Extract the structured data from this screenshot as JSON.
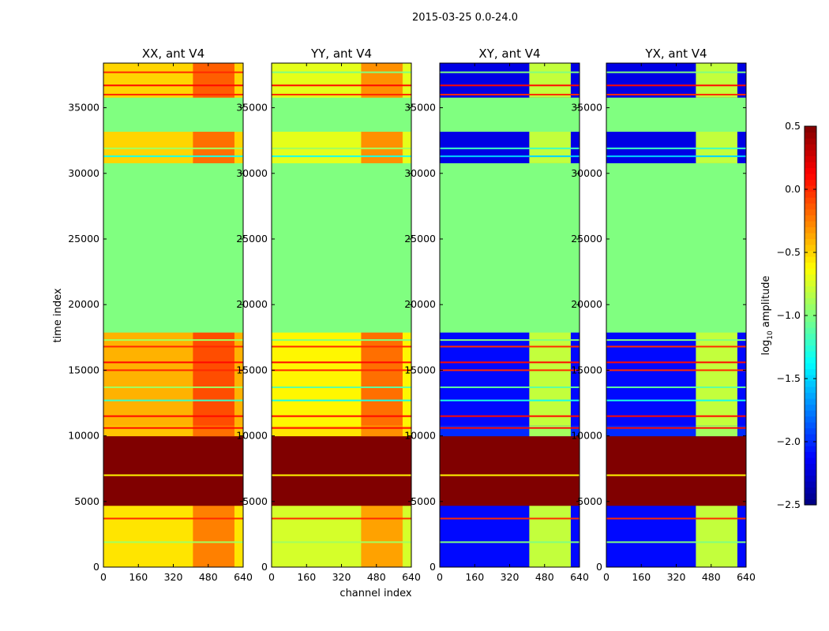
{
  "chart_data": {
    "type": "heatmap",
    "title": "2015-03-25 0.0-24.0",
    "xlabel": "channel index",
    "ylabel": "time index",
    "xlim": [
      0,
      640
    ],
    "ylim": [
      0,
      38400
    ],
    "xticks": [
      "0",
      "160",
      "320",
      "480",
      "640"
    ],
    "yticks": [
      "0",
      "5000",
      "10000",
      "15000",
      "20000",
      "25000",
      "30000",
      "35000"
    ],
    "colorbar": {
      "label": "log10 amplitude",
      "label_main": "log",
      "label_sub": "10",
      "label_rest": " amplitude",
      "range": [
        -2.5,
        0.5
      ],
      "ticks": [
        "0.5",
        "0.0",
        "−0.5",
        "−1.0",
        "−1.5",
        "−2.0",
        "−2.5"
      ],
      "colormap": "jet"
    },
    "hot_channels": [
      410,
      600
    ],
    "panels": [
      {
        "title": "XX, ant V4",
        "bands": [
          [
            0,
            4700,
            -0.55,
            -0.25
          ],
          [
            4700,
            10000,
            0.5,
            0.5
          ],
          [
            10000,
            10800,
            -0.45,
            -0.2
          ],
          [
            10800,
            17900,
            -0.4,
            -0.1
          ],
          [
            17900,
            30800,
            -1.0,
            -1.0
          ],
          [
            30800,
            33200,
            -0.5,
            -0.2
          ],
          [
            33200,
            35800,
            -1.0,
            -1.0
          ],
          [
            35800,
            38400,
            -0.5,
            -0.15
          ]
        ],
        "lines": [
          [
            1900,
            -0.9
          ],
          [
            3700,
            0.0
          ],
          [
            7000,
            -0.6
          ],
          [
            10600,
            0.1
          ],
          [
            11500,
            0.1
          ],
          [
            12700,
            -1.2
          ],
          [
            13700,
            -0.9
          ],
          [
            15000,
            0.0
          ],
          [
            15600,
            0.1
          ],
          [
            16800,
            0.0
          ],
          [
            17300,
            -0.9
          ],
          [
            31300,
            -1.3
          ],
          [
            31900,
            -0.9
          ],
          [
            36000,
            0.0
          ],
          [
            36700,
            0.1
          ],
          [
            37700,
            0.0
          ]
        ]
      },
      {
        "title": "YY, ant V4",
        "bands": [
          [
            0,
            4700,
            -0.75,
            -0.35
          ],
          [
            4700,
            10000,
            0.5,
            0.5
          ],
          [
            10000,
            10800,
            -0.55,
            -0.3
          ],
          [
            10800,
            17900,
            -0.6,
            -0.2
          ],
          [
            17900,
            30800,
            -1.0,
            -1.0
          ],
          [
            30800,
            33200,
            -0.7,
            -0.3
          ],
          [
            33200,
            35800,
            -1.0,
            -1.0
          ],
          [
            35800,
            38400,
            -0.7,
            -0.3
          ]
        ],
        "lines": [
          [
            1900,
            -0.9
          ],
          [
            3700,
            0.0
          ],
          [
            7000,
            -0.6
          ],
          [
            10600,
            0.1
          ],
          [
            11500,
            0.1
          ],
          [
            12700,
            -1.3
          ],
          [
            13700,
            -1.1
          ],
          [
            15000,
            0.0
          ],
          [
            15600,
            0.1
          ],
          [
            16800,
            0.0
          ],
          [
            17300,
            -1.0
          ],
          [
            31300,
            -1.3
          ],
          [
            31900,
            -0.9
          ],
          [
            36000,
            0.0
          ],
          [
            36700,
            0.1
          ],
          [
            37700,
            -1.0
          ]
        ]
      },
      {
        "title": "XY, ant V4",
        "bands": [
          [
            0,
            4700,
            -2.1,
            -0.8
          ],
          [
            4700,
            10000,
            0.5,
            0.5
          ],
          [
            10000,
            10800,
            -2.0,
            -0.9
          ],
          [
            10800,
            17900,
            -2.1,
            -0.8
          ],
          [
            17900,
            30800,
            -1.0,
            -1.0
          ],
          [
            30800,
            33200,
            -2.2,
            -0.8
          ],
          [
            33200,
            35800,
            -1.0,
            -1.0
          ],
          [
            35800,
            38400,
            -2.2,
            -0.8
          ]
        ],
        "lines": [
          [
            1900,
            -1.0
          ],
          [
            3700,
            0.0
          ],
          [
            7000,
            -0.6
          ],
          [
            10600,
            0.1
          ],
          [
            11500,
            0.1
          ],
          [
            12700,
            -1.3
          ],
          [
            13700,
            -1.1
          ],
          [
            15000,
            0.0
          ],
          [
            15600,
            0.1
          ],
          [
            16800,
            0.0
          ],
          [
            17300,
            -1.0
          ],
          [
            31300,
            -1.5
          ],
          [
            31900,
            -1.2
          ],
          [
            36000,
            0.0
          ],
          [
            36700,
            0.1
          ],
          [
            37700,
            -1.0
          ]
        ]
      },
      {
        "title": "YX, ant V4",
        "bands": [
          [
            0,
            4700,
            -2.1,
            -0.8
          ],
          [
            4700,
            10000,
            0.5,
            0.5
          ],
          [
            10000,
            10800,
            -2.0,
            -0.9
          ],
          [
            10800,
            17900,
            -2.1,
            -0.8
          ],
          [
            17900,
            30800,
            -1.0,
            -1.0
          ],
          [
            30800,
            33200,
            -2.2,
            -0.8
          ],
          [
            33200,
            35800,
            -1.0,
            -1.0
          ],
          [
            35800,
            38400,
            -2.2,
            -0.8
          ]
        ],
        "lines": [
          [
            1900,
            -1.0
          ],
          [
            3700,
            0.0
          ],
          [
            7000,
            -0.6
          ],
          [
            10600,
            0.1
          ],
          [
            11500,
            0.1
          ],
          [
            12700,
            -1.3
          ],
          [
            13700,
            -1.1
          ],
          [
            15000,
            0.0
          ],
          [
            15600,
            0.1
          ],
          [
            16800,
            0.0
          ],
          [
            17300,
            -1.0
          ],
          [
            31300,
            -1.5
          ],
          [
            31900,
            -1.2
          ],
          [
            36000,
            0.0
          ],
          [
            36700,
            0.1
          ],
          [
            37700,
            -1.0
          ]
        ]
      }
    ]
  }
}
